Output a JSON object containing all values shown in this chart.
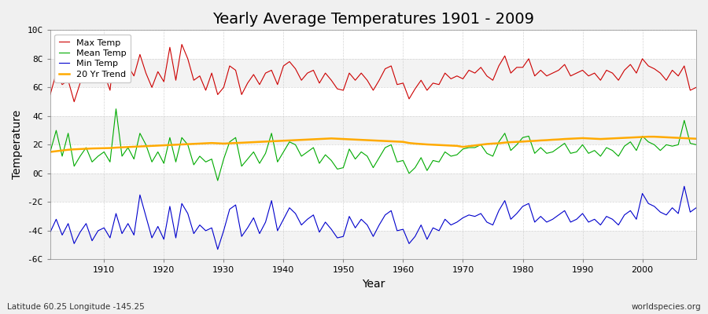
{
  "title": "Yearly Average Temperatures 1901 - 2009",
  "xlabel": "Year",
  "ylabel": "Temperature",
  "bottom_left": "Latitude 60.25 Longitude -145.25",
  "bottom_right": "worldspecies.org",
  "ylim": [
    -6,
    10
  ],
  "yticks": [
    -6,
    -4,
    -2,
    0,
    2,
    4,
    6,
    8,
    10
  ],
  "ytick_labels": [
    "-6C",
    "-4C",
    "-2C",
    "0C",
    "2C",
    "4C",
    "6C",
    "8C",
    "10C"
  ],
  "xlim": [
    1901,
    2009
  ],
  "xticks": [
    1910,
    1920,
    1930,
    1940,
    1950,
    1960,
    1970,
    1980,
    1990,
    2000
  ],
  "legend": [
    "Max Temp",
    "Mean Temp",
    "Min Temp",
    "20 Yr Trend"
  ],
  "colors": [
    "#cc0000",
    "#00aa00",
    "#0000cc",
    "#ffaa00"
  ],
  "background_color": "#f0f0f0",
  "plot_bg": "#ffffff",
  "title_fontsize": 14,
  "years": [
    1901,
    1902,
    1903,
    1904,
    1905,
    1906,
    1907,
    1908,
    1909,
    1910,
    1911,
    1912,
    1913,
    1914,
    1915,
    1916,
    1917,
    1918,
    1919,
    1920,
    1921,
    1922,
    1923,
    1924,
    1925,
    1926,
    1927,
    1928,
    1929,
    1930,
    1931,
    1932,
    1933,
    1934,
    1935,
    1936,
    1937,
    1938,
    1939,
    1940,
    1941,
    1942,
    1943,
    1944,
    1945,
    1946,
    1947,
    1948,
    1949,
    1950,
    1951,
    1952,
    1953,
    1954,
    1955,
    1956,
    1957,
    1958,
    1959,
    1960,
    1961,
    1962,
    1963,
    1964,
    1965,
    1966,
    1967,
    1968,
    1969,
    1970,
    1971,
    1972,
    1973,
    1974,
    1975,
    1976,
    1977,
    1978,
    1979,
    1980,
    1981,
    1982,
    1983,
    1984,
    1985,
    1986,
    1987,
    1988,
    1989,
    1990,
    1991,
    1992,
    1993,
    1994,
    1995,
    1996,
    1997,
    1998,
    1999,
    2000,
    2001,
    2002,
    2003,
    2004,
    2005,
    2006,
    2007,
    2008,
    2009
  ],
  "max_temp": [
    5.5,
    7.0,
    6.2,
    6.5,
    5.0,
    6.3,
    7.8,
    6.5,
    7.2,
    7.0,
    5.8,
    9.5,
    7.2,
    7.5,
    6.8,
    8.3,
    7.0,
    6.0,
    7.1,
    6.4,
    8.8,
    6.5,
    9.0,
    8.0,
    6.5,
    6.8,
    5.8,
    7.0,
    5.5,
    6.0,
    7.5,
    7.2,
    5.5,
    6.3,
    6.9,
    6.2,
    7.0,
    7.2,
    6.2,
    7.5,
    7.8,
    7.3,
    6.5,
    7.0,
    7.2,
    6.3,
    7.0,
    6.5,
    5.9,
    5.8,
    7.0,
    6.5,
    7.0,
    6.5,
    5.8,
    6.5,
    7.3,
    7.5,
    6.2,
    6.3,
    5.2,
    5.9,
    6.5,
    5.8,
    6.3,
    6.2,
    7.0,
    6.6,
    6.8,
    6.6,
    7.2,
    7.0,
    7.4,
    6.8,
    6.5,
    7.5,
    8.2,
    7.0,
    7.4,
    7.4,
    8.0,
    6.8,
    7.2,
    6.8,
    7.0,
    7.2,
    7.6,
    6.8,
    7.0,
    7.2,
    6.8,
    7.0,
    6.5,
    7.2,
    7.0,
    6.5,
    7.2,
    7.6,
    7.0,
    8.0,
    7.5,
    7.3,
    7.0,
    6.5,
    7.2,
    6.8,
    7.5,
    5.8,
    6.0
  ],
  "mean_temp": [
    1.5,
    3.0,
    1.2,
    2.8,
    0.5,
    1.2,
    1.8,
    0.8,
    1.2,
    1.5,
    0.8,
    4.5,
    1.2,
    1.8,
    1.0,
    2.8,
    2.0,
    0.8,
    1.5,
    0.7,
    2.5,
    0.8,
    2.5,
    2.0,
    0.6,
    1.2,
    0.8,
    1.0,
    -0.5,
    1.0,
    2.2,
    2.5,
    0.5,
    1.0,
    1.5,
    0.7,
    1.4,
    2.8,
    0.8,
    1.5,
    2.2,
    2.0,
    1.2,
    1.5,
    1.8,
    0.7,
    1.3,
    0.9,
    0.3,
    0.4,
    1.7,
    1.0,
    1.5,
    1.2,
    0.4,
    1.1,
    1.8,
    2.0,
    0.8,
    0.9,
    0.0,
    0.4,
    1.1,
    0.2,
    0.9,
    0.8,
    1.5,
    1.2,
    1.3,
    1.7,
    1.8,
    1.8,
    2.0,
    1.4,
    1.2,
    2.2,
    2.8,
    1.6,
    2.0,
    2.5,
    2.6,
    1.4,
    1.8,
    1.4,
    1.5,
    1.8,
    2.1,
    1.4,
    1.5,
    2.0,
    1.4,
    1.6,
    1.2,
    1.8,
    1.6,
    1.2,
    1.9,
    2.2,
    1.6,
    2.6,
    2.2,
    2.0,
    1.6,
    2.0,
    1.9,
    2.0,
    3.7,
    2.1,
    2.0
  ],
  "min_temp": [
    -4.1,
    -3.2,
    -4.3,
    -3.5,
    -4.9,
    -4.1,
    -3.5,
    -4.7,
    -4.0,
    -3.8,
    -4.5,
    -2.8,
    -4.2,
    -3.5,
    -4.3,
    -1.5,
    -3.0,
    -4.5,
    -3.7,
    -4.6,
    -2.3,
    -4.5,
    -2.1,
    -2.8,
    -4.2,
    -3.6,
    -4.0,
    -3.8,
    -5.3,
    -4.0,
    -2.5,
    -2.2,
    -4.4,
    -3.8,
    -3.1,
    -4.2,
    -3.4,
    -1.9,
    -4.0,
    -3.2,
    -2.4,
    -2.8,
    -3.6,
    -3.2,
    -2.9,
    -4.1,
    -3.4,
    -3.9,
    -4.5,
    -4.4,
    -3.0,
    -3.8,
    -3.2,
    -3.6,
    -4.4,
    -3.6,
    -2.9,
    -2.6,
    -4.0,
    -3.9,
    -4.9,
    -4.4,
    -3.6,
    -4.6,
    -3.8,
    -4.0,
    -3.2,
    -3.6,
    -3.4,
    -3.1,
    -2.9,
    -3.0,
    -2.8,
    -3.4,
    -3.6,
    -2.6,
    -1.9,
    -3.2,
    -2.8,
    -2.3,
    -2.1,
    -3.4,
    -3.0,
    -3.4,
    -3.2,
    -2.9,
    -2.6,
    -3.4,
    -3.2,
    -2.8,
    -3.4,
    -3.2,
    -3.6,
    -3.0,
    -3.2,
    -3.6,
    -2.9,
    -2.6,
    -3.2,
    -1.4,
    -2.1,
    -2.3,
    -2.7,
    -2.9,
    -2.4,
    -2.8,
    -0.9,
    -2.7,
    -2.4
  ],
  "trend_20yr": [
    1.5,
    1.55,
    1.6,
    1.65,
    1.68,
    1.7,
    1.72,
    1.74,
    1.75,
    1.76,
    1.77,
    1.8,
    1.82,
    1.84,
    1.86,
    1.88,
    1.9,
    1.92,
    1.94,
    1.96,
    1.98,
    2.0,
    2.02,
    2.04,
    2.06,
    2.08,
    2.1,
    2.12,
    2.1,
    2.08,
    2.1,
    2.12,
    2.14,
    2.16,
    2.18,
    2.2,
    2.22,
    2.24,
    2.26,
    2.28,
    2.3,
    2.32,
    2.34,
    2.36,
    2.38,
    2.4,
    2.42,
    2.44,
    2.42,
    2.4,
    2.38,
    2.36,
    2.34,
    2.32,
    2.3,
    2.28,
    2.26,
    2.24,
    2.22,
    2.2,
    2.12,
    2.08,
    2.05,
    2.02,
    2.0,
    1.98,
    1.96,
    1.94,
    1.92,
    1.85,
    1.9,
    1.95,
    2.0,
    2.05,
    2.08,
    2.1,
    2.15,
    2.18,
    2.2,
    2.22,
    2.25,
    2.27,
    2.3,
    2.32,
    2.35,
    2.37,
    2.4,
    2.42,
    2.44,
    2.46,
    2.44,
    2.42,
    2.4,
    2.42,
    2.44,
    2.46,
    2.48,
    2.5,
    2.52,
    2.54,
    2.56,
    2.56,
    2.54,
    2.52,
    2.5,
    2.48,
    2.46,
    2.44,
    2.42
  ]
}
